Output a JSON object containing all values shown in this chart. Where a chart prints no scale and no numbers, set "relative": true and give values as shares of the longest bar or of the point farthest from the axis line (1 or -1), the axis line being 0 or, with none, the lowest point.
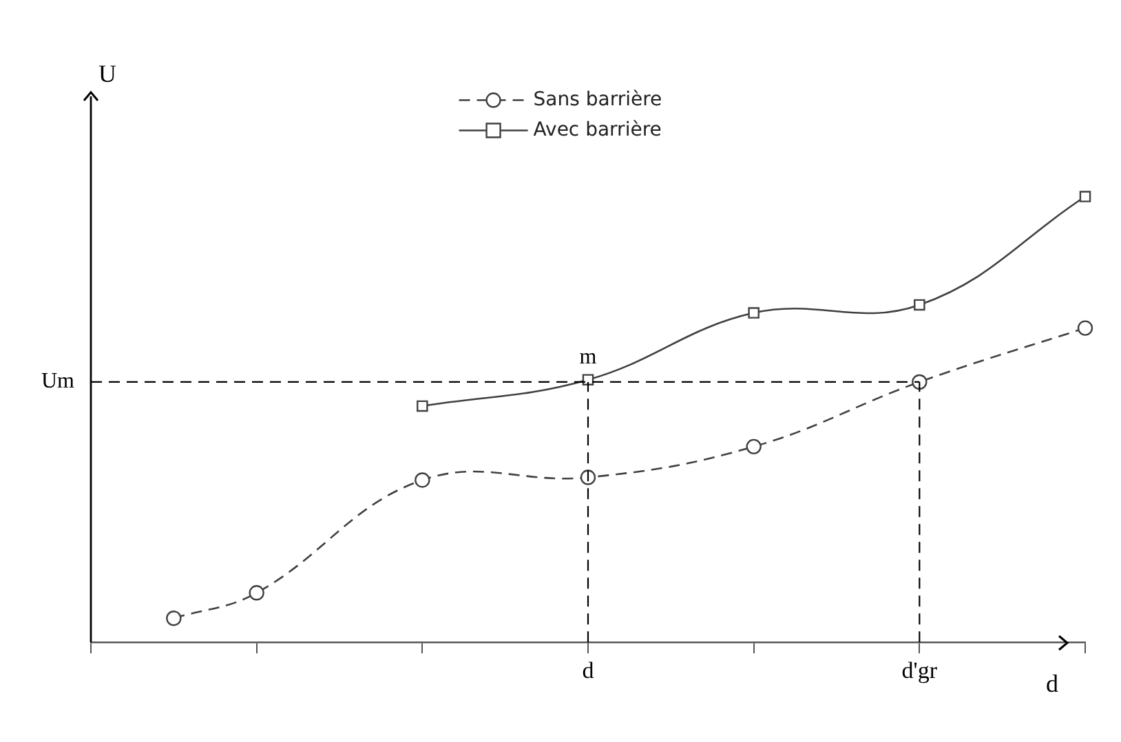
{
  "chart_data": {
    "type": "line",
    "relative": true,
    "xlabel": "d",
    "ylabel": "U",
    "legend": "top",
    "grid": false,
    "categories": [
      null,
      null,
      null,
      null,
      null,
      null,
      "d",
      null,
      null,
      null,
      "d'gr",
      null,
      null
    ],
    "series": [
      {
        "name": "Sans barrière",
        "color": "#404040",
        "marker": "circle",
        "line_style": "dashed",
        "values": [
          null,
          0.054,
          0.111,
          null,
          0.364,
          null,
          0.37,
          null,
          0.439,
          null,
          0.584,
          null,
          0.705
        ]
      },
      {
        "name": "Avec barrière",
        "color": "#404040",
        "marker": "square",
        "line_style": "solid",
        "values": [
          null,
          null,
          null,
          null,
          0.53,
          null,
          0.589,
          null,
          0.739,
          null,
          0.757,
          null,
          1
        ]
      }
    ],
    "ref_lines": [
      {
        "axis": "y",
        "value": 0.584,
        "label": "Um",
        "line_style": "dashed"
      },
      {
        "axis": "x",
        "value": "d",
        "line_style": "dashed"
      },
      {
        "axis": "x",
        "value": "d'gr",
        "line_style": "dashed"
      }
    ],
    "annotations": [
      {
        "text": "m",
        "x": "d",
        "y": 0.589
      }
    ]
  }
}
